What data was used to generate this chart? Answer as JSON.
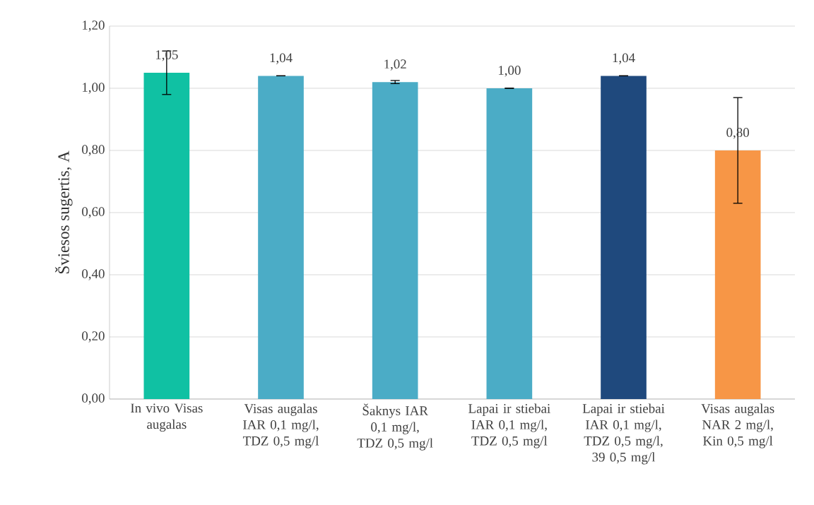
{
  "chart_data": {
    "type": "bar",
    "ylabel": "Šviesos sugertis, A",
    "categories": [
      "In vivo Visas augalas",
      "Visas augalas IAR 0,1 mg/l, TDZ 0,5 mg/l",
      "Šaknys IAR 0,1 mg/l, TDZ 0,5 mg/l",
      "Lapai ir stiebai IAR 0,1 mg/l, TDZ 0,5 mg/l",
      "Lapai ir stiebai IAR 0,1 mg/l, TDZ 0,5 mg/l, 39 0,5 mg/l",
      "Visas augalas NAR 2 mg/l, Kin 0,5 mg/l"
    ],
    "values": [
      1.05,
      1.04,
      1.02,
      1.0,
      1.04,
      0.8
    ],
    "colors": [
      "#10c1a3",
      "#4bacc6",
      "#4bacc6",
      "#4bacc6",
      "#1f497d",
      "#f79646"
    ],
    "errors": [
      0.07,
      0,
      0.005,
      0,
      0,
      0.17
    ],
    "value_labels": [
      "1,05",
      "1,04",
      "1,02",
      "1,00",
      "1,04",
      "0,80"
    ],
    "ylim": [
      0,
      1.2
    ],
    "yticks": [
      {
        "value": 0,
        "label": "0,00"
      },
      {
        "value": 0.2,
        "label": "0,20"
      },
      {
        "value": 0.4,
        "label": "0,40"
      },
      {
        "value": 0.6,
        "label": "0,60"
      },
      {
        "value": 0.8,
        "label": "0,80"
      },
      {
        "value": 1.0,
        "label": "1,00"
      },
      {
        "value": 1.2,
        "label": "1,20"
      }
    ],
    "grid": "y"
  }
}
